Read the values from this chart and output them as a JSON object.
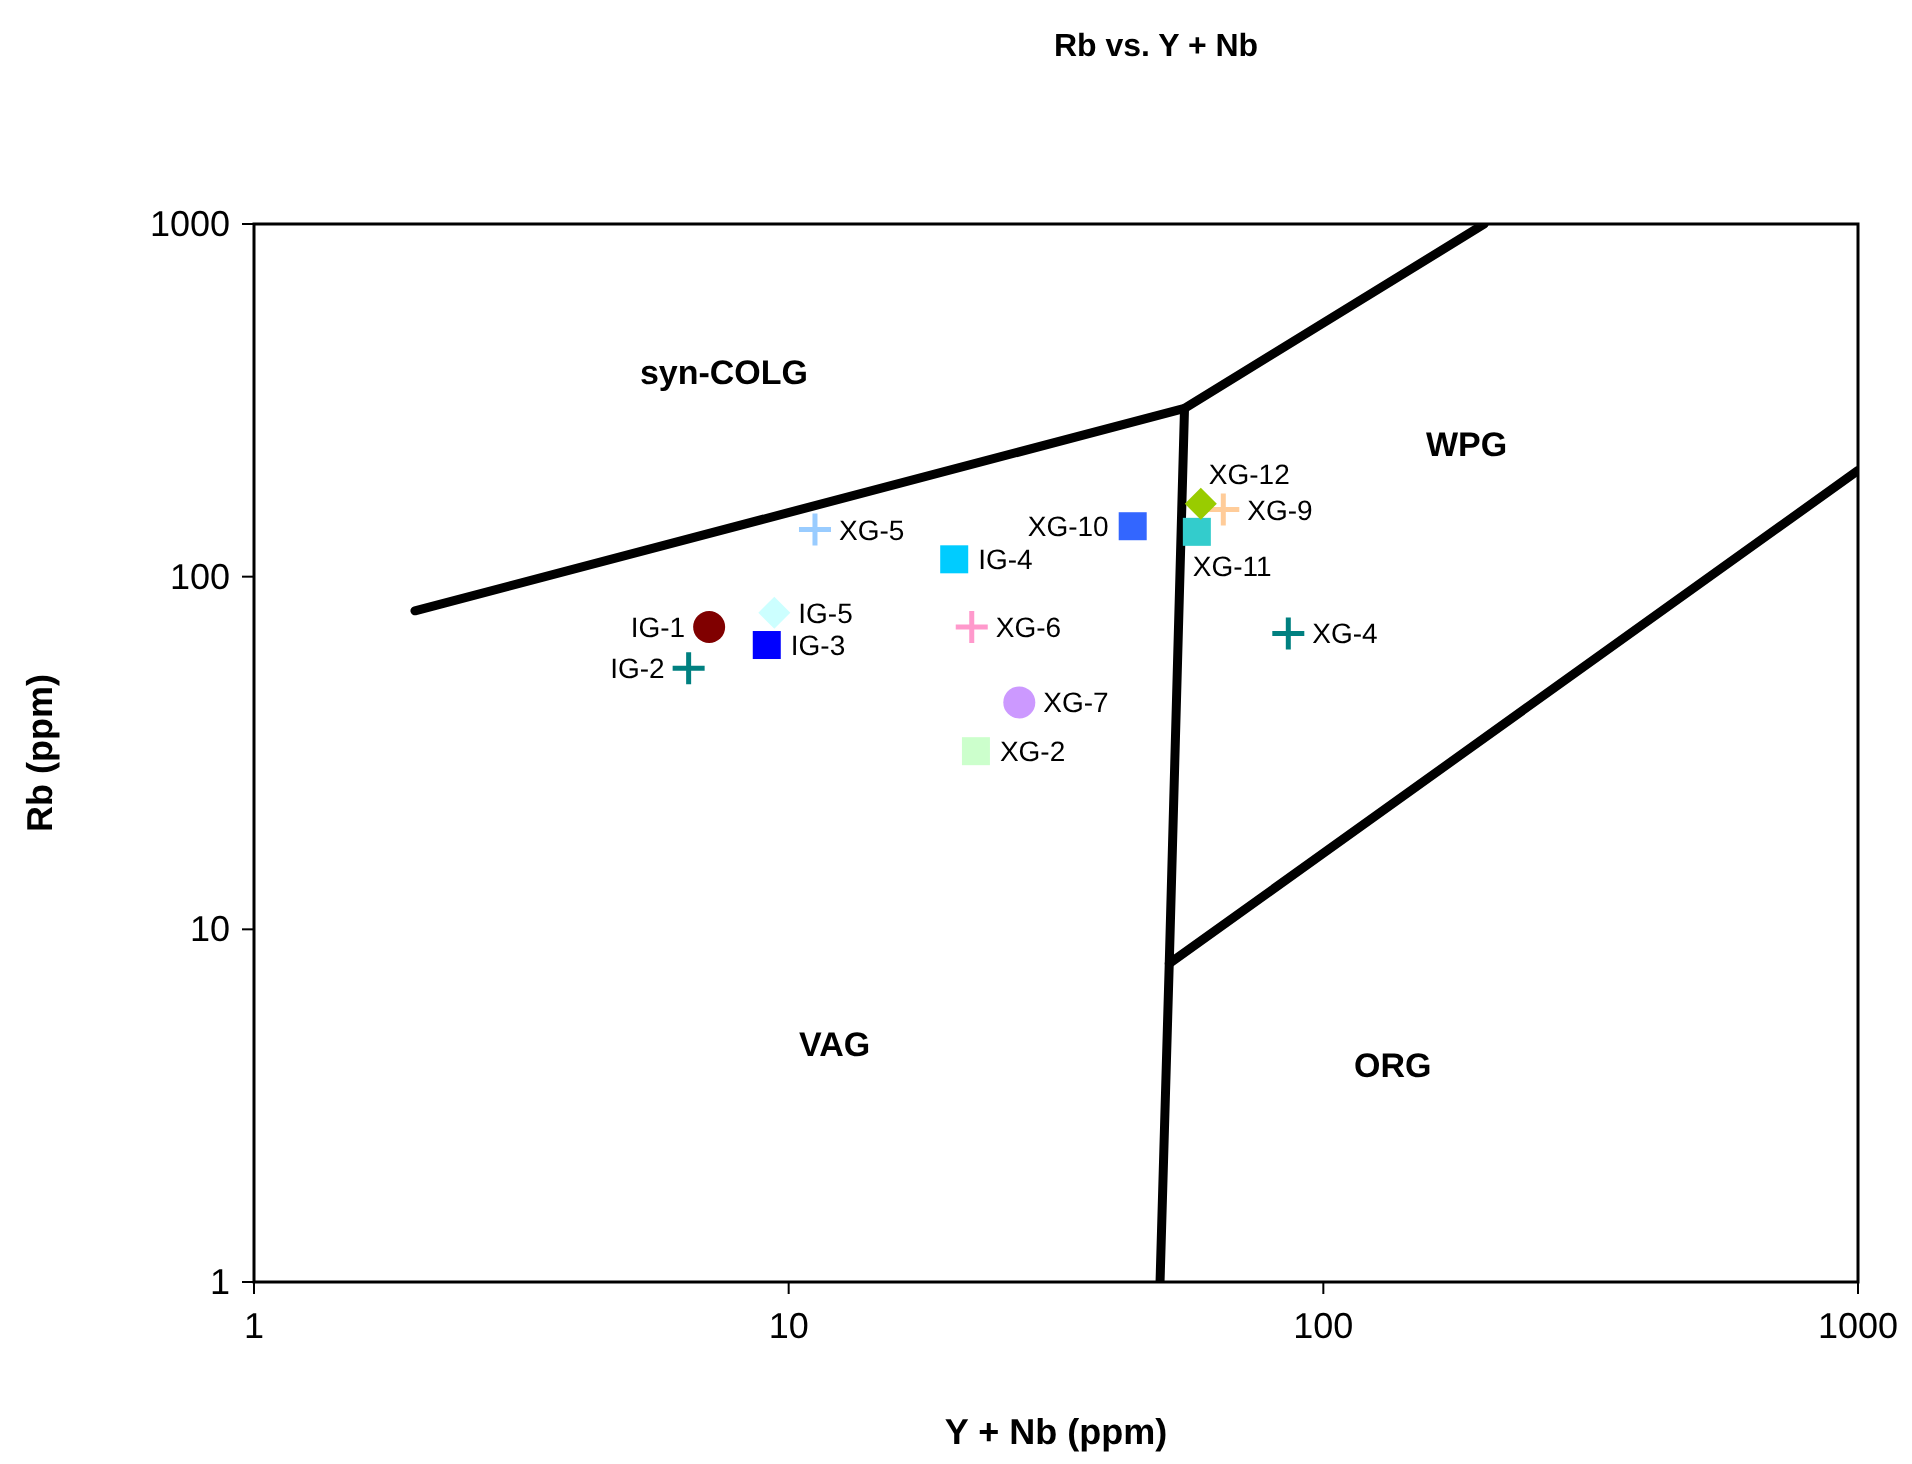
{
  "chart_data": {
    "type": "scatter",
    "title": "Rb vs. Y + Nb",
    "xlabel": "Y + Nb (ppm)",
    "ylabel": "Rb (ppm)",
    "log": "xy",
    "xlim": [
      1,
      1000
    ],
    "ylim": [
      1,
      1000
    ],
    "xticks": [
      1,
      10,
      100,
      1000
    ],
    "yticks": [
      1,
      10,
      100,
      1000
    ],
    "grid": false,
    "series": [
      {
        "type": "line",
        "color": "#000000",
        "marker": "none",
        "x": [
          2,
          55,
          200
        ],
        "values": [
          80,
          300,
          1000
        ]
      },
      {
        "type": "line",
        "color": "#000000",
        "marker": "none",
        "x": [
          55,
          51.5,
          49.5
        ],
        "values": [
          300,
          8,
          1
        ]
      },
      {
        "type": "line",
        "color": "#000000",
        "marker": "none",
        "x": [
          51.5,
          1000
        ],
        "values": [
          8,
          200
        ]
      },
      {
        "name": "IG-1",
        "color": "#800000",
        "marker": "circle",
        "x": [
          7.1
        ],
        "values": [
          72
        ]
      },
      {
        "name": "IG-2",
        "color": "#008080",
        "marker": "cross",
        "x": [
          6.5
        ],
        "values": [
          55
        ]
      },
      {
        "name": "IG-3",
        "color": "#0000ff",
        "marker": "square",
        "x": [
          9.1
        ],
        "values": [
          64
        ]
      },
      {
        "name": "IG-4",
        "color": "#00ccff",
        "marker": "square",
        "x": [
          20.4
        ],
        "values": [
          112
        ]
      },
      {
        "name": "IG-5",
        "color": "#ccffff",
        "marker": "diamond",
        "x": [
          9.4
        ],
        "values": [
          79
        ]
      },
      {
        "name": "XG-2",
        "color": "#ccffcc",
        "marker": "square",
        "x": [
          22.4
        ],
        "values": [
          32
        ]
      },
      {
        "name": "XG-4",
        "color": "#008080",
        "marker": "cross",
        "x": [
          86
        ],
        "values": [
          69
        ]
      },
      {
        "name": "XG-5",
        "color": "#99ccff",
        "marker": "cross",
        "x": [
          11.2
        ],
        "values": [
          136
        ]
      },
      {
        "name": "XG-6",
        "color": "#ff99cc",
        "marker": "cross",
        "x": [
          22
        ],
        "values": [
          72
        ]
      },
      {
        "name": "XG-7",
        "color": "#cc99ff",
        "marker": "circle",
        "x": [
          27
        ],
        "values": [
          44
        ]
      },
      {
        "name": "XG-9",
        "color": "#ffcc99",
        "marker": "cross",
        "x": [
          65
        ],
        "values": [
          155
        ]
      },
      {
        "name": "XG-10",
        "color": "#3366ff",
        "marker": "square",
        "x": [
          44
        ],
        "values": [
          139
        ]
      },
      {
        "name": "XG-11",
        "color": "#33cccc",
        "marker": "square",
        "x": [
          58
        ],
        "values": [
          134
        ]
      },
      {
        "name": "XG-12",
        "color": "#99cc00",
        "marker": "diamond",
        "x": [
          59
        ],
        "values": [
          161
        ]
      }
    ],
    "annotations": [
      "syn-COLG",
      "VAG",
      "WPG",
      "ORG"
    ]
  }
}
